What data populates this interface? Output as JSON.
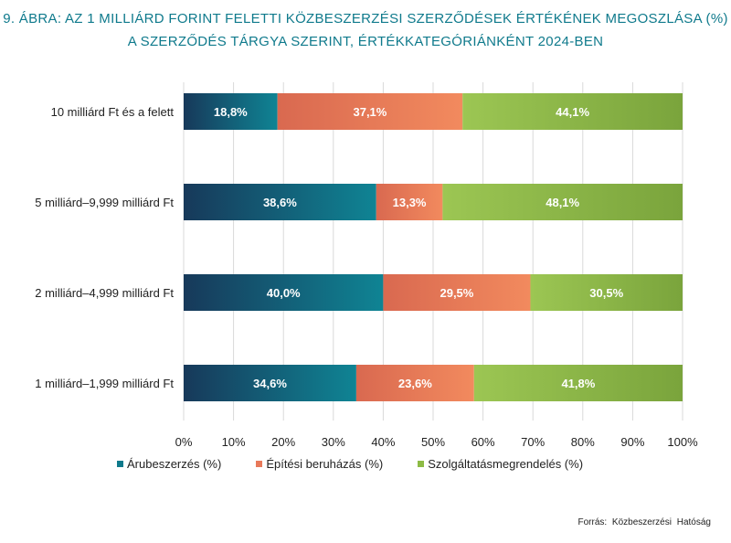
{
  "chart_data": {
    "type": "bar",
    "orientation": "horizontal",
    "stacked": true,
    "title": "9. ÁBRA: AZ 1 MILLIÁRD FORINT FELETTI KÖZBESZERZÉSI SZERZŐDÉSEK ÉRTÉKÉNEK MEGOSZLÁSA (%)",
    "subtitle": "A SZERZŐDÉS TÁRGYA SZERINT, ÉRTÉKKATEGÓRIÁNKÉNT 2024-BEN",
    "categories": [
      "10 milliárd Ft és a felett",
      "5 milliárd–9,999 milliárd Ft",
      "2 milliárd–4,999 milliárd Ft",
      "1 milliárd–1,999 milliárd Ft"
    ],
    "series": [
      {
        "name": "Árubeszerzés (%)",
        "color": "#0f7a8c",
        "values": [
          18.8,
          38.6,
          40.0,
          34.6
        ],
        "labels": [
          "18,8%",
          "38,6%",
          "40,0%",
          "34,6%"
        ]
      },
      {
        "name": "Építési beruházás (%)",
        "color": "#e8795a",
        "values": [
          37.1,
          13.3,
          29.5,
          23.6
        ],
        "labels": [
          "37,1%",
          "13,3%",
          "29,5%",
          "23,6%"
        ]
      },
      {
        "name": "Szolgáltatásmegrendelés (%)",
        "color": "#8dbb45",
        "values": [
          44.1,
          48.1,
          30.5,
          41.8
        ],
        "labels": [
          "44,1%",
          "48,1%",
          "30,5%",
          "41,8%"
        ]
      }
    ],
    "xlim": [
      0,
      100
    ],
    "xticks": [
      "0%",
      "10%",
      "20%",
      "30%",
      "40%",
      "50%",
      "60%",
      "70%",
      "80%",
      "90%",
      "100%"
    ],
    "grid": true,
    "legend": "bottom"
  },
  "source": "Forrás: Közbeszerzési Hatóság"
}
